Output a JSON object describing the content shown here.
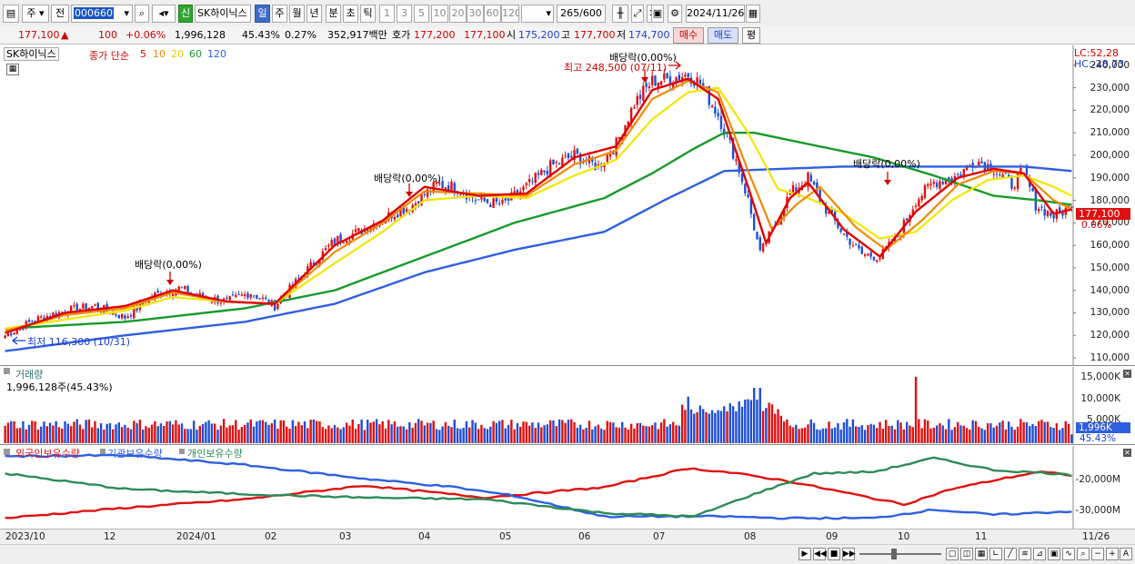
{
  "toolbar": {
    "period_week": "주",
    "prev_label": "전",
    "code": "000660",
    "new_badge": "신",
    "stock_name": "SK하이닉스",
    "tabs": [
      "일",
      "주",
      "월",
      "년",
      "분",
      "초",
      "틱"
    ],
    "active_tab": "일",
    "intervals": [
      "1",
      "3",
      "5",
      "10",
      "20",
      "30",
      "60",
      "120"
    ],
    "count": "265",
    "count_total": "/600",
    "date": "2024/11/26"
  },
  "quote": {
    "price": "177,100",
    "change_arrow": "▲",
    "change": "100",
    "change_pct": "+0.06%",
    "volume": "1,996,128",
    "volume_ratio": "45.43%",
    "turnover_rate": "0.27%",
    "amount": "352,917백만",
    "bid_label": "호가",
    "ask_price": "177,200",
    "bid_price": "177,100",
    "open_label": "시",
    "open": "175,200",
    "high_label": "고",
    "high": "177,700",
    "low_label": "저",
    "low": "174,700",
    "buy_label": "매수",
    "sell_label": "매도",
    "eval_label": "평"
  },
  "price_pane": {
    "name_box": "SK하이닉스",
    "legend_prefix": "종가 단순",
    "ma_periods": [
      "5",
      "10",
      "20",
      "60",
      "120"
    ],
    "ma_colors": [
      "#e00000",
      "#f08a00",
      "#f2e600",
      "#189a2c",
      "#2e5fe0"
    ],
    "lc": "LC:52,28",
    "hc": "HC:-28,73",
    "current_price_tag": "177,100",
    "current_pct_tag": "0.06%",
    "max_annotation": "최고 248,500 (07/11)",
    "min_annotation": "최저 116,300 (10/31)",
    "dividend_labels": [
      "배당락(0,00%)",
      "배당락(0,00%)",
      "배당락(0,00%)",
      "배당락(0,00%)"
    ],
    "y_ticks": [
      "240,000",
      "230,000",
      "220,000",
      "210,000",
      "200,000",
      "190,000",
      "180,000",
      "170,000",
      "160,000",
      "150,000",
      "140,000",
      "130,000",
      "120,000",
      "110,000"
    ]
  },
  "volume_pane": {
    "title": "거래량",
    "value": "1,996,128주(45.43%)",
    "y_ticks": [
      "15,000K",
      "10,000K",
      "5,000K"
    ],
    "current_tag": "1,996K",
    "current_pct": "45.43%"
  },
  "holdings_pane": {
    "legend": [
      "외국인보유수량",
      "기관보유수량",
      "개인보유수량"
    ],
    "colors": [
      "#e01010",
      "#2e5fe0",
      "#2e8b57"
    ],
    "y_ticks": [
      "-20,000M",
      "-30,000M"
    ]
  },
  "x_axis": {
    "labels": [
      "2023/10",
      "12",
      "2024/01",
      "02",
      "03",
      "04",
      "05",
      "06",
      "07",
      "08",
      "09",
      "10",
      "11",
      "11/26"
    ]
  },
  "chart_data": [
    {
      "type": "candlestick",
      "title": "SK하이닉스",
      "x_labels": [
        "2023/10",
        "12",
        "2024/01",
        "02",
        "03",
        "04",
        "05",
        "06",
        "07",
        "08",
        "09",
        "10",
        "11"
      ],
      "ylim": [
        110000,
        250000
      ],
      "close_path": [
        [
          0,
          120000
        ],
        [
          10,
          127000
        ],
        [
          20,
          131000
        ],
        [
          30,
          133000
        ],
        [
          40,
          128000
        ],
        [
          50,
          138000
        ],
        [
          58,
          141000
        ],
        [
          66,
          137000
        ],
        [
          74,
          135000
        ],
        [
          82,
          139000
        ],
        [
          90,
          133000
        ],
        [
          100,
          148000
        ],
        [
          110,
          162000
        ],
        [
          118,
          166000
        ],
        [
          126,
          172000
        ],
        [
          136,
          178000
        ],
        [
          144,
          187000
        ],
        [
          150,
          186000
        ],
        [
          158,
          180000
        ],
        [
          166,
          178000
        ],
        [
          174,
          186000
        ],
        [
          182,
          195000
        ],
        [
          190,
          200000
        ],
        [
          198,
          195000
        ],
        [
          204,
          205000
        ],
        [
          210,
          223000
        ],
        [
          216,
          233000
        ],
        [
          222,
          234000
        ],
        [
          228,
          236000
        ],
        [
          232,
          232000
        ],
        [
          238,
          218000
        ],
        [
          244,
          198000
        ],
        [
          248,
          180000
        ],
        [
          252,
          156000
        ],
        [
          258,
          172000
        ],
        [
          262,
          183000
        ],
        [
          268,
          190000
        ],
        [
          274,
          176000
        ],
        [
          280,
          165000
        ],
        [
          286,
          156000
        ],
        [
          292,
          155000
        ],
        [
          298,
          164000
        ],
        [
          304,
          180000
        ],
        [
          310,
          188000
        ],
        [
          318,
          191000
        ],
        [
          324,
          198000
        ],
        [
          330,
          194000
        ],
        [
          336,
          187000
        ],
        [
          340,
          193000
        ],
        [
          344,
          178000
        ],
        [
          350,
          173000
        ],
        [
          356,
          177100
        ]
      ],
      "series": [
        {
          "name": "5",
          "values": [
            [
              0,
              121000
            ],
            [
              20,
              130000
            ],
            [
              40,
              133000
            ],
            [
              56,
              140000
            ],
            [
              74,
              135000
            ],
            [
              90,
              134000
            ],
            [
              110,
              160000
            ],
            [
              126,
              171000
            ],
            [
              140,
              186000
            ],
            [
              158,
              182000
            ],
            [
              174,
              183000
            ],
            [
              190,
              199000
            ],
            [
              204,
              204000
            ],
            [
              216,
              229000
            ],
            [
              228,
              234000
            ],
            [
              238,
              225000
            ],
            [
              248,
              186000
            ],
            [
              254,
              161000
            ],
            [
              262,
              181000
            ],
            [
              268,
              188000
            ],
            [
              280,
              167000
            ],
            [
              292,
              155000
            ],
            [
              304,
              175000
            ],
            [
              318,
              190000
            ],
            [
              330,
              194000
            ],
            [
              340,
              192000
            ],
            [
              350,
              174000
            ],
            [
              356,
              176000
            ]
          ]
        },
        {
          "name": "10",
          "values": [
            [
              0,
              122000
            ],
            [
              20,
              129000
            ],
            [
              40,
              132000
            ],
            [
              56,
              139000
            ],
            [
              74,
              135000
            ],
            [
              90,
              134000
            ],
            [
              110,
              157000
            ],
            [
              126,
              170000
            ],
            [
              140,
              184000
            ],
            [
              158,
              183000
            ],
            [
              174,
              182000
            ],
            [
              190,
              196000
            ],
            [
              204,
              202000
            ],
            [
              216,
              225000
            ],
            [
              228,
              233000
            ],
            [
              238,
              228000
            ],
            [
              248,
              193000
            ],
            [
              256,
              167000
            ],
            [
              264,
              178000
            ],
            [
              272,
              186000
            ],
            [
              284,
              168000
            ],
            [
              294,
              158000
            ],
            [
              306,
              171000
            ],
            [
              318,
              187000
            ],
            [
              330,
              193000
            ],
            [
              340,
              192000
            ],
            [
              350,
              180000
            ],
            [
              356,
              176000
            ]
          ]
        },
        {
          "name": "20",
          "values": [
            [
              0,
              123000
            ],
            [
              20,
              127000
            ],
            [
              40,
              131000
            ],
            [
              56,
              137000
            ],
            [
              74,
              135000
            ],
            [
              90,
              134000
            ],
            [
              110,
              152000
            ],
            [
              126,
              166000
            ],
            [
              140,
              180000
            ],
            [
              158,
              182000
            ],
            [
              174,
              181000
            ],
            [
              190,
              191000
            ],
            [
              204,
              198000
            ],
            [
              216,
              216000
            ],
            [
              228,
              228000
            ],
            [
              238,
              230000
            ],
            [
              248,
              210000
            ],
            [
              258,
              185000
            ],
            [
              268,
              181000
            ],
            [
              280,
              174000
            ],
            [
              292,
              163000
            ],
            [
              304,
              166000
            ],
            [
              316,
              180000
            ],
            [
              328,
              189000
            ],
            [
              340,
              191000
            ],
            [
              350,
              186000
            ],
            [
              356,
              182000
            ]
          ]
        },
        {
          "name": "60",
          "values": [
            [
              0,
              123000
            ],
            [
              40,
              126000
            ],
            [
              80,
              132000
            ],
            [
              110,
              140000
            ],
            [
              140,
              155000
            ],
            [
              170,
              170000
            ],
            [
              200,
              181000
            ],
            [
              216,
              192000
            ],
            [
              230,
              203000
            ],
            [
              240,
              210000
            ],
            [
              250,
              210000
            ],
            [
              268,
              205000
            ],
            [
              290,
              199000
            ],
            [
              310,
              191000
            ],
            [
              330,
              182000
            ],
            [
              345,
              180000
            ],
            [
              356,
              178000
            ]
          ]
        },
        {
          "name": "120",
          "values": [
            [
              0,
              113000
            ],
            [
              40,
              120000
            ],
            [
              80,
              126000
            ],
            [
              110,
              134000
            ],
            [
              140,
              148000
            ],
            [
              170,
              158000
            ],
            [
              200,
              166000
            ],
            [
              220,
              180000
            ],
            [
              240,
              193000
            ],
            [
              260,
              194000
            ],
            [
              280,
              195000
            ],
            [
              300,
              195000
            ],
            [
              320,
              195000
            ],
            [
              340,
              195000
            ],
            [
              356,
              193000
            ]
          ]
        }
      ]
    },
    {
      "type": "bar",
      "title": "거래량",
      "ylim": [
        0,
        16000000
      ],
      "last_value": 1996128
    },
    {
      "type": "line",
      "series": [
        {
          "name": "외국인보유수량",
          "values": [
            [
              0,
              -33500
            ],
            [
              40,
              -30500
            ],
            [
              80,
              -28000
            ],
            [
              120,
              -24000
            ],
            [
              160,
              -27500
            ],
            [
              200,
              -24500
            ],
            [
              228,
              -19000
            ],
            [
              240,
              -20000
            ],
            [
              260,
              -22500
            ],
            [
              280,
              -26000
            ],
            [
              300,
              -29500
            ],
            [
              316,
              -25000
            ],
            [
              330,
              -22500
            ],
            [
              345,
              -20000
            ],
            [
              356,
              -21000
            ]
          ]
        },
        {
          "name": "기관보유수량",
          "values": [
            [
              0,
              -15500
            ],
            [
              40,
              -15200
            ],
            [
              80,
              -18000
            ],
            [
              120,
              -22000
            ],
            [
              150,
              -24500
            ],
            [
              170,
              -27000
            ],
            [
              200,
              -33000
            ],
            [
              240,
              -33000
            ],
            [
              260,
              -33500
            ],
            [
              290,
              -33500
            ],
            [
              310,
              -31000
            ],
            [
              330,
              -32500
            ],
            [
              356,
              -31500
            ]
          ]
        },
        {
          "name": "개인보유수량",
          "values": [
            [
              0,
              -20500
            ],
            [
              40,
              -25000
            ],
            [
              80,
              -26500
            ],
            [
              120,
              -27500
            ],
            [
              160,
              -28000
            ],
            [
              200,
              -32000
            ],
            [
              230,
              -33000
            ],
            [
              250,
              -26500
            ],
            [
              270,
              -20500
            ],
            [
              290,
              -20000
            ],
            [
              310,
              -16000
            ],
            [
              330,
              -19500
            ],
            [
              350,
              -20500
            ],
            [
              356,
              -21000
            ]
          ]
        }
      ]
    }
  ]
}
